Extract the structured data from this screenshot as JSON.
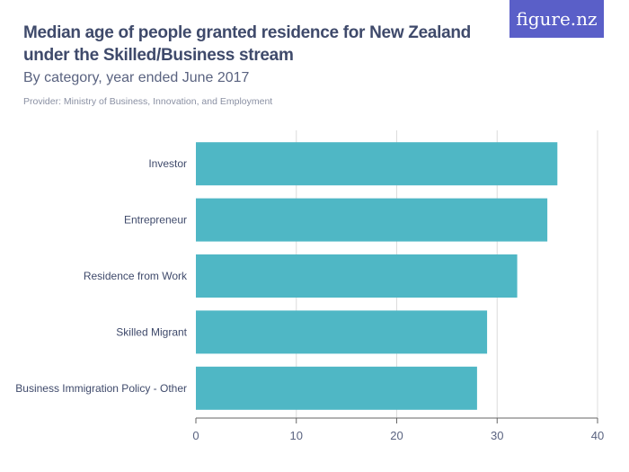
{
  "header": {
    "title": "Median age of people granted residence for New Zealand under the Skilled/Business stream",
    "subtitle": "By category, year ended June 2017",
    "provider": "Provider: Ministry of Business, Innovation, and Employment",
    "logo_text": "figure.nz"
  },
  "chart_data": {
    "type": "bar",
    "orientation": "horizontal",
    "categories": [
      "Investor",
      "Entrepreneur",
      "Residence from Work",
      "Skilled Migrant",
      "Business Immigration Policy - Other"
    ],
    "values": [
      36,
      35,
      32,
      29,
      28
    ],
    "xlim": [
      0,
      40
    ],
    "xticks": [
      0,
      10,
      20,
      30,
      40
    ],
    "grid": true,
    "bar_color": "#4fb7c5"
  }
}
